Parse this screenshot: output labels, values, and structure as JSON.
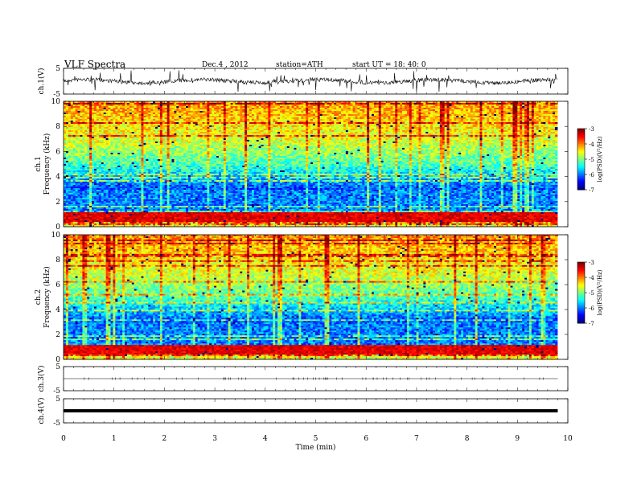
{
  "header": {
    "title": "VLF  Spectra",
    "date": "Dec.4  , 2012",
    "station": "station=ATH",
    "start": "start  UT =   18: 40: 0"
  },
  "chart_data": {
    "type": "heatmap",
    "xlabel": "Time  (min)",
    "xlim": [
      0,
      10
    ],
    "xticks": [
      "0",
      "1",
      "2",
      "3",
      "4",
      "5",
      "6",
      "7",
      "8",
      "9",
      "10"
    ],
    "data_extent_min": 9.8,
    "panels": [
      {
        "kind": "waveform",
        "ylabel": "ch.1(V)",
        "yticks": [
          "5",
          "-5"
        ],
        "ylim": [
          -5,
          5
        ]
      },
      {
        "kind": "spectrogram",
        "ylabel_top": "ch.1",
        "ylabel": "Frequency  (kHz)",
        "yticks": [
          "0",
          "2",
          "4",
          "6",
          "8",
          "10"
        ],
        "ylim": [
          0,
          10
        ],
        "colorbar": {
          "label": "log(PSD)(V²/Hz)",
          "ticks": [
            "-3",
            "-4",
            "-5",
            "-6",
            "-7"
          ],
          "range": [
            -7,
            -3
          ]
        }
      },
      {
        "kind": "spectrogram",
        "ylabel_top": "ch.2",
        "ylabel": "Frequency  (kHz)",
        "yticks": [
          "0",
          "2",
          "4",
          "6",
          "8",
          "10"
        ],
        "ylim": [
          0,
          10
        ],
        "colorbar": {
          "label": "log(PSD)(V²/Hz)",
          "ticks": [
            "-3",
            "-4",
            "-5",
            "-6",
            "-7"
          ],
          "range": [
            -7,
            -3
          ]
        }
      },
      {
        "kind": "waveform",
        "ylabel": "ch.3(V)",
        "yticks": [
          "5",
          "-5"
        ],
        "ylim": [
          -5,
          5
        ]
      },
      {
        "kind": "waveform",
        "ylabel": "ch.4(V)",
        "yticks": [
          "5",
          "-5"
        ],
        "ylim": [
          -5,
          5
        ]
      }
    ]
  }
}
